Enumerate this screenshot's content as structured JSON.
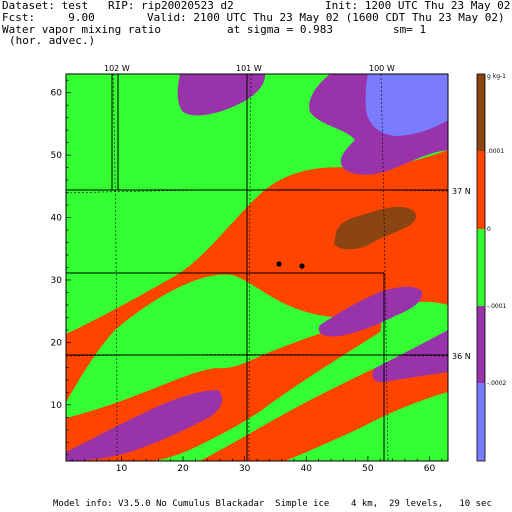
{
  "header": {
    "dataset": "Dataset: test   RIP: rip20020523 d2",
    "init": "Init: 1200 UTC Thu 23 May 02",
    "fcst": "Fcst:     9.00",
    "valid": "Valid: 2100 UTC Thu 23 May 02 (1600 CDT Thu 23 May 02)",
    "field": "Water vapor mixing ratio",
    "sigma": "at sigma = 0.983",
    "sm": "sm= 1",
    "advec": "(hor. advec.)"
  },
  "footer": {
    "model_info": "Model info: V3.5.0 No Cumulus Blackadar  Simple ice    4 km,  29 levels,   10 sec"
  },
  "map": {
    "xlim": [
      1,
      63
    ],
    "ylim": [
      1,
      63
    ],
    "x_ticks": [
      "10",
      "20",
      "30",
      "40",
      "50",
      "60"
    ],
    "y_ticks": [
      "10",
      "20",
      "30",
      "40",
      "50",
      "60"
    ],
    "lon_labels": [
      "102 W",
      "101 W",
      "100 W"
    ],
    "lat_labels": [
      "37 N",
      "36 N"
    ]
  },
  "colorbar": {
    "unit": "g kg-1",
    "labels": [
      ".0001",
      "0",
      "-.0001",
      "-.0002"
    ],
    "colors": [
      "#7b7bff",
      "#9933aa",
      "#33ff33",
      "#ff4400",
      "#8b4513"
    ]
  },
  "colors": {
    "green": "#33ff33",
    "orange": "#ff4400",
    "purple": "#9933aa",
    "blue": "#7b7bff",
    "brown": "#8b4513"
  }
}
